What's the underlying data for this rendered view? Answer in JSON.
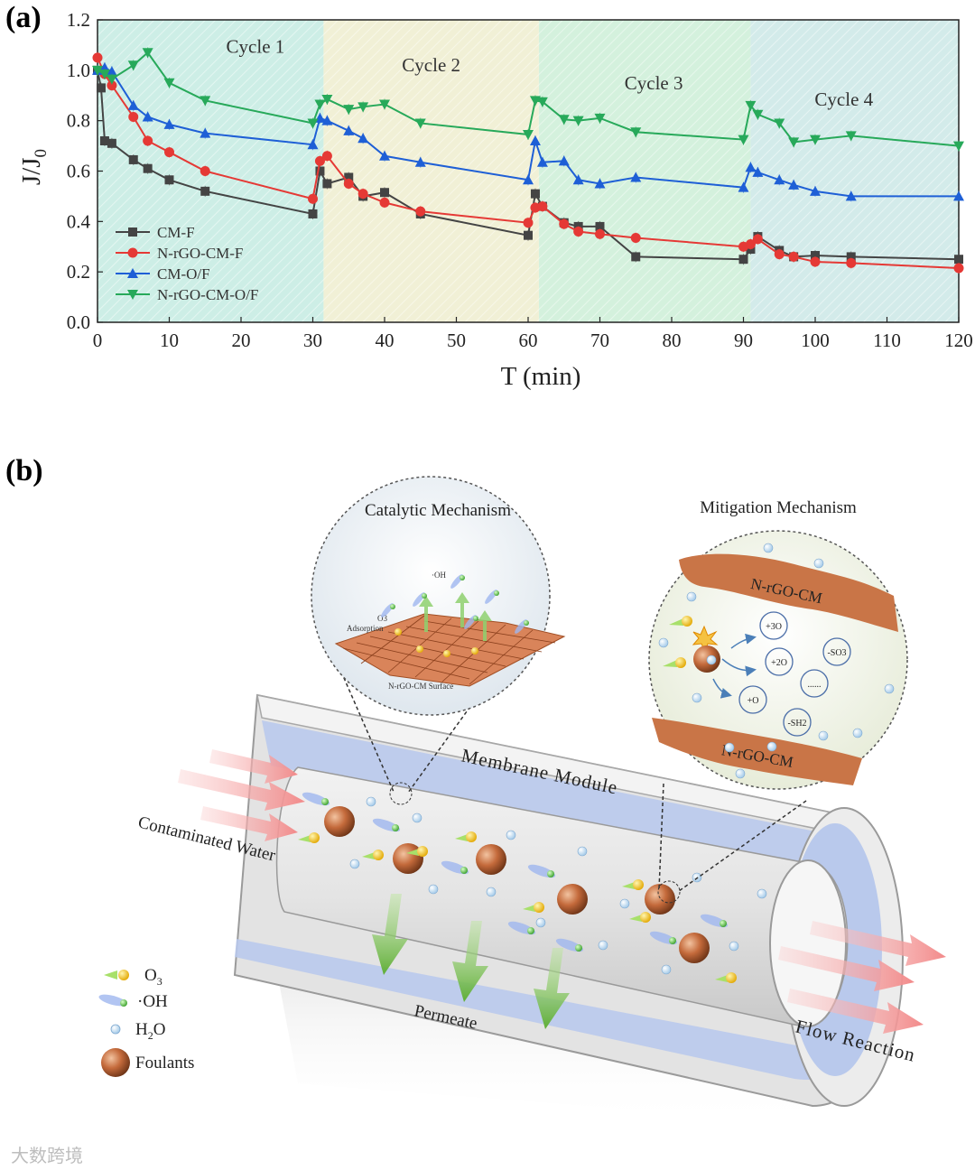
{
  "panel_a_label": "(a)",
  "panel_b_label": "(b)",
  "chart_data": {
    "type": "line",
    "xlabel": "T (min)",
    "ylabel": "J/J0",
    "xlim": [
      0,
      120
    ],
    "ylim": [
      0,
      1.2
    ],
    "xticks": [
      0,
      10,
      20,
      30,
      40,
      50,
      60,
      70,
      80,
      90,
      100,
      110,
      120
    ],
    "yticks": [
      0.0,
      0.2,
      0.4,
      0.6,
      0.8,
      1.0,
      1.2
    ],
    "legend_position": "bottom-left",
    "cycles": [
      {
        "label": "Cycle 1",
        "start": 0,
        "end": 31.5,
        "color": "#cdeee6"
      },
      {
        "label": "Cycle 2",
        "start": 31.5,
        "end": 61.5,
        "color": "#f1f0d6"
      },
      {
        "label": "Cycle 3",
        "start": 61.5,
        "end": 91,
        "color": "#d4f1dd"
      },
      {
        "label": "Cycle 4",
        "start": 91,
        "end": 120,
        "color": "#d3ebea"
      }
    ],
    "series": [
      {
        "name": "CM-F",
        "color": "#444444",
        "marker": "square",
        "x": [
          0,
          0.5,
          1,
          2,
          5,
          7,
          10,
          15,
          30,
          31,
          32,
          35,
          37,
          40,
          45,
          60,
          61,
          62,
          65,
          67,
          70,
          75,
          90,
          91,
          92,
          95,
          97,
          100,
          105,
          120
        ],
        "y": [
          1.0,
          0.93,
          0.72,
          0.71,
          0.645,
          0.61,
          0.565,
          0.52,
          0.43,
          0.6,
          0.55,
          0.575,
          0.5,
          0.515,
          0.43,
          0.345,
          0.51,
          0.46,
          0.395,
          0.38,
          0.38,
          0.26,
          0.25,
          0.29,
          0.34,
          0.285,
          0.26,
          0.265,
          0.26,
          0.25
        ]
      },
      {
        "name": "N-rGO-CM-F",
        "color": "#e53935",
        "marker": "circle",
        "x": [
          0,
          1,
          2,
          5,
          7,
          10,
          15,
          30,
          31,
          32,
          35,
          37,
          40,
          45,
          60,
          61,
          62,
          65,
          67,
          70,
          75,
          90,
          91,
          92,
          95,
          97,
          100,
          105,
          120
        ],
        "y": [
          1.05,
          0.985,
          0.94,
          0.815,
          0.72,
          0.675,
          0.6,
          0.49,
          0.64,
          0.66,
          0.55,
          0.51,
          0.475,
          0.44,
          0.395,
          0.455,
          0.46,
          0.39,
          0.36,
          0.35,
          0.335,
          0.3,
          0.31,
          0.33,
          0.27,
          0.26,
          0.24,
          0.235,
          0.215
        ]
      },
      {
        "name": "CM-O/F",
        "color": "#1e5fd6",
        "marker": "triangle-up",
        "x": [
          0,
          1,
          2,
          5,
          7,
          10,
          15,
          30,
          31,
          32,
          35,
          37,
          40,
          45,
          60,
          61,
          62,
          65,
          67,
          70,
          75,
          90,
          91,
          92,
          95,
          97,
          100,
          105,
          120
        ],
        "y": [
          1.0,
          1.01,
          0.995,
          0.86,
          0.815,
          0.785,
          0.75,
          0.705,
          0.81,
          0.8,
          0.76,
          0.73,
          0.66,
          0.635,
          0.565,
          0.72,
          0.635,
          0.64,
          0.565,
          0.55,
          0.575,
          0.535,
          0.615,
          0.595,
          0.565,
          0.545,
          0.52,
          0.5,
          0.5
        ]
      },
      {
        "name": "N-rGO-CM-O/F",
        "color": "#27a95a",
        "marker": "triangle-down",
        "x": [
          0,
          1,
          2,
          5,
          7,
          10,
          15,
          30,
          31,
          32,
          35,
          37,
          40,
          45,
          60,
          61,
          62,
          65,
          67,
          70,
          75,
          90,
          91,
          92,
          95,
          97,
          100,
          105,
          120
        ],
        "y": [
          1.0,
          0.985,
          0.965,
          1.02,
          1.07,
          0.95,
          0.88,
          0.79,
          0.865,
          0.885,
          0.845,
          0.855,
          0.865,
          0.79,
          0.745,
          0.88,
          0.875,
          0.805,
          0.8,
          0.81,
          0.755,
          0.725,
          0.86,
          0.825,
          0.79,
          0.715,
          0.725,
          0.74,
          0.7
        ]
      }
    ]
  },
  "diagram": {
    "catalytic_title": "Catalytic Mechanism",
    "catalytic_oh": "·OH",
    "catalytic_o3": "O3",
    "catalytic_adsorption": "Adsorption",
    "catalytic_surface": "N-rGO-CM Surface",
    "mitigation_title": "Mitigation Mechanism",
    "mitigation_top_band": "N-rGO-CM",
    "mitigation_bottom_band": "N-rGO-CM",
    "products": [
      "+3O",
      "+2O",
      "-SO3",
      "+O",
      "-SH2",
      "......"
    ],
    "membrane_label": "Membrane Module",
    "contaminated_label": "Contaminated Water",
    "permeate_label": "Permeate",
    "flow_label": "Flow Reaction",
    "legend": [
      {
        "name": "O3",
        "icon": "ozone-icon"
      },
      {
        "name": "·OH",
        "icon": "hydroxyl-radical-icon"
      },
      {
        "name": "H2O",
        "icon": "water-molecule-icon"
      },
      {
        "name": "Foulants",
        "icon": "foulant-icon"
      }
    ]
  },
  "watermark": "大数跨境",
  "colors": {
    "brown": "#c46a3b",
    "band": "#c97547",
    "membrane_fill": "#dcdcdc",
    "inner_blue": "#b9c9ec",
    "arrow_red": "#f5a0a0",
    "arrow_green": "#6dbb45"
  }
}
